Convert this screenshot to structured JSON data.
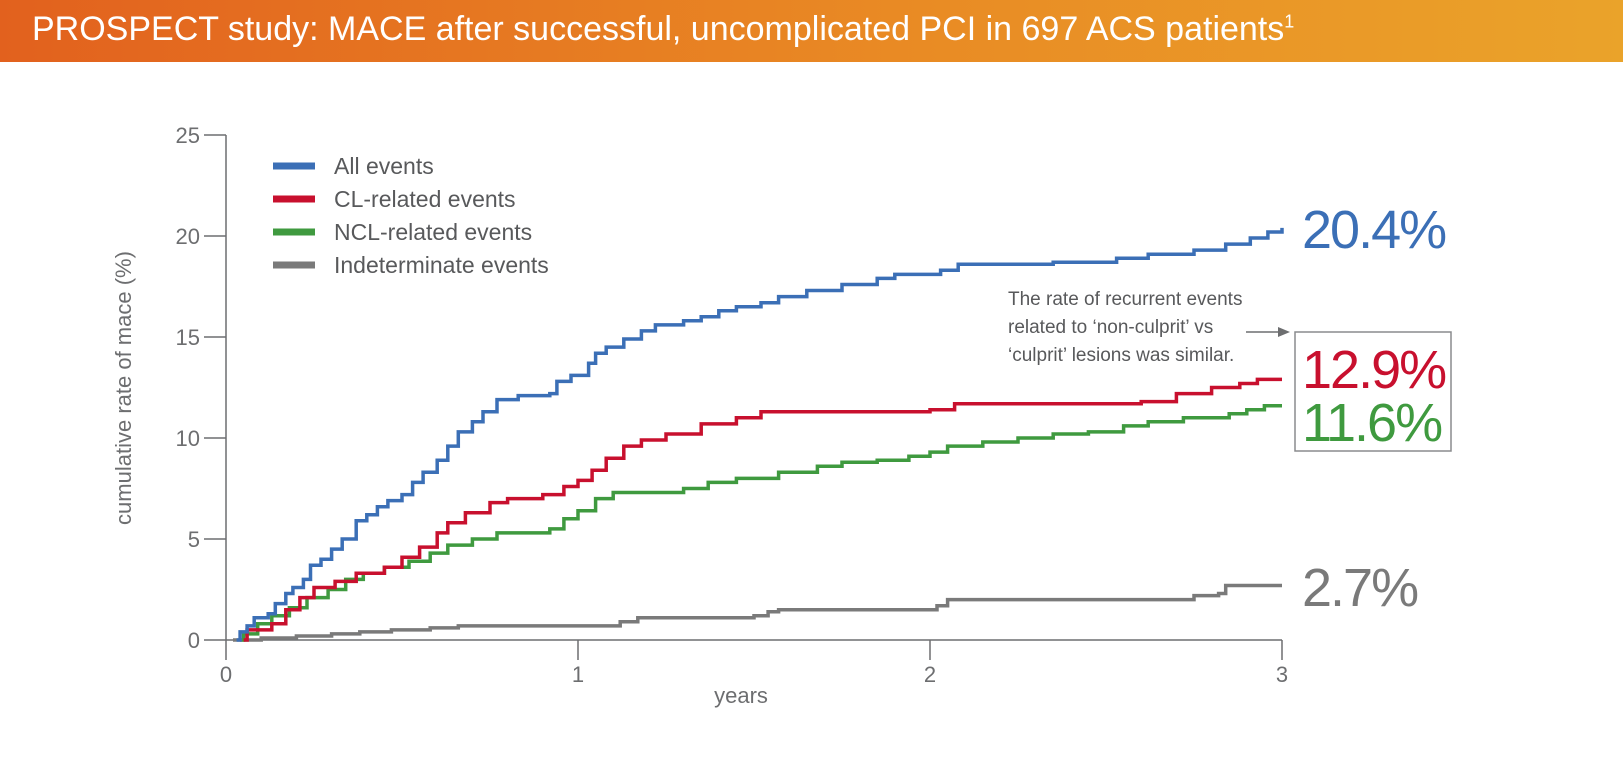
{
  "header": {
    "title": "PROSPECT study: MACE after successful, uncomplicated PCI in 697 ACS patients",
    "superscript": "1"
  },
  "colors": {
    "header_start": "#e2611e",
    "header_end": "#eaa32a",
    "all_events": "#3b6fb6",
    "cl_events": "#c8102e",
    "ncl_events": "#3f9a3f",
    "indeterminate_events": "#7a7a7a",
    "axis": "#6d6e70"
  },
  "chart_data": {
    "type": "line",
    "step": true,
    "xlabel": "years",
    "ylabel": "cumulative rate of mace (%)",
    "xlim": [
      0,
      3
    ],
    "ylim": [
      0,
      25
    ],
    "x_ticks": [
      0,
      1,
      2,
      3
    ],
    "y_ticks": [
      0,
      5,
      10,
      15,
      20,
      25
    ],
    "grid": false,
    "legend_position": "top-left",
    "series": [
      {
        "name": "All events",
        "color": "#3b6fb6",
        "end_label": "20.4%",
        "points": [
          [
            0.03,
            0
          ],
          [
            0.04,
            0.4
          ],
          [
            0.06,
            0.7
          ],
          [
            0.08,
            1.1
          ],
          [
            0.12,
            1.3
          ],
          [
            0.14,
            1.8
          ],
          [
            0.17,
            2.3
          ],
          [
            0.19,
            2.6
          ],
          [
            0.22,
            3.0
          ],
          [
            0.24,
            3.7
          ],
          [
            0.27,
            4.0
          ],
          [
            0.3,
            4.5
          ],
          [
            0.33,
            5.0
          ],
          [
            0.37,
            5.9
          ],
          [
            0.4,
            6.2
          ],
          [
            0.43,
            6.6
          ],
          [
            0.46,
            6.9
          ],
          [
            0.5,
            7.2
          ],
          [
            0.53,
            7.8
          ],
          [
            0.56,
            8.3
          ],
          [
            0.6,
            8.9
          ],
          [
            0.63,
            9.6
          ],
          [
            0.66,
            10.3
          ],
          [
            0.7,
            10.8
          ],
          [
            0.73,
            11.3
          ],
          [
            0.77,
            11.9
          ],
          [
            0.83,
            12.1
          ],
          [
            0.92,
            12.2
          ],
          [
            0.94,
            12.8
          ],
          [
            0.98,
            13.1
          ],
          [
            1.03,
            13.7
          ],
          [
            1.05,
            14.2
          ],
          [
            1.08,
            14.5
          ],
          [
            1.13,
            14.9
          ],
          [
            1.18,
            15.3
          ],
          [
            1.22,
            15.6
          ],
          [
            1.3,
            15.8
          ],
          [
            1.35,
            16.0
          ],
          [
            1.4,
            16.3
          ],
          [
            1.45,
            16.5
          ],
          [
            1.52,
            16.7
          ],
          [
            1.57,
            17.0
          ],
          [
            1.65,
            17.3
          ],
          [
            1.75,
            17.6
          ],
          [
            1.85,
            17.9
          ],
          [
            1.9,
            18.1
          ],
          [
            2.03,
            18.3
          ],
          [
            2.08,
            18.6
          ],
          [
            2.35,
            18.7
          ],
          [
            2.53,
            18.9
          ],
          [
            2.62,
            19.1
          ],
          [
            2.75,
            19.3
          ],
          [
            2.84,
            19.6
          ],
          [
            2.91,
            19.9
          ],
          [
            2.96,
            20.2
          ],
          [
            3.0,
            20.4
          ]
        ]
      },
      {
        "name": "CL-related events",
        "color": "#c8102e",
        "end_label": "12.9%",
        "points": [
          [
            0.05,
            0
          ],
          [
            0.06,
            0.5
          ],
          [
            0.13,
            0.8
          ],
          [
            0.17,
            1.5
          ],
          [
            0.21,
            2.1
          ],
          [
            0.25,
            2.6
          ],
          [
            0.31,
            2.9
          ],
          [
            0.37,
            3.3
          ],
          [
            0.45,
            3.6
          ],
          [
            0.5,
            4.1
          ],
          [
            0.55,
            4.6
          ],
          [
            0.6,
            5.3
          ],
          [
            0.63,
            5.8
          ],
          [
            0.68,
            6.3
          ],
          [
            0.75,
            6.8
          ],
          [
            0.8,
            7.0
          ],
          [
            0.9,
            7.2
          ],
          [
            0.96,
            7.6
          ],
          [
            1.0,
            7.9
          ],
          [
            1.04,
            8.4
          ],
          [
            1.08,
            9.0
          ],
          [
            1.13,
            9.6
          ],
          [
            1.18,
            9.9
          ],
          [
            1.25,
            10.2
          ],
          [
            1.35,
            10.7
          ],
          [
            1.45,
            11.0
          ],
          [
            1.52,
            11.3
          ],
          [
            1.7,
            11.3
          ],
          [
            2.0,
            11.4
          ],
          [
            2.07,
            11.7
          ],
          [
            2.6,
            11.8
          ],
          [
            2.7,
            12.2
          ],
          [
            2.8,
            12.5
          ],
          [
            2.88,
            12.7
          ],
          [
            2.93,
            12.9
          ],
          [
            3.0,
            12.9
          ]
        ]
      },
      {
        "name": "NCL-related events",
        "color": "#3f9a3f",
        "end_label": "11.6%",
        "points": [
          [
            0.04,
            0
          ],
          [
            0.05,
            0.3
          ],
          [
            0.09,
            0.8
          ],
          [
            0.13,
            1.2
          ],
          [
            0.18,
            1.6
          ],
          [
            0.23,
            2.1
          ],
          [
            0.29,
            2.5
          ],
          [
            0.34,
            3.0
          ],
          [
            0.39,
            3.3
          ],
          [
            0.45,
            3.6
          ],
          [
            0.52,
            3.9
          ],
          [
            0.58,
            4.3
          ],
          [
            0.63,
            4.7
          ],
          [
            0.7,
            5.0
          ],
          [
            0.77,
            5.3
          ],
          [
            0.92,
            5.5
          ],
          [
            0.96,
            6.0
          ],
          [
            1.0,
            6.4
          ],
          [
            1.05,
            7.0
          ],
          [
            1.1,
            7.3
          ],
          [
            1.3,
            7.5
          ],
          [
            1.37,
            7.8
          ],
          [
            1.45,
            8.0
          ],
          [
            1.57,
            8.3
          ],
          [
            1.68,
            8.6
          ],
          [
            1.75,
            8.8
          ],
          [
            1.85,
            8.9
          ],
          [
            1.94,
            9.1
          ],
          [
            2.0,
            9.3
          ],
          [
            2.05,
            9.6
          ],
          [
            2.15,
            9.8
          ],
          [
            2.25,
            10.0
          ],
          [
            2.35,
            10.2
          ],
          [
            2.45,
            10.3
          ],
          [
            2.55,
            10.6
          ],
          [
            2.62,
            10.8
          ],
          [
            2.72,
            11.0
          ],
          [
            2.85,
            11.2
          ],
          [
            2.9,
            11.4
          ],
          [
            2.95,
            11.6
          ],
          [
            3.0,
            11.6
          ]
        ]
      },
      {
        "name": "Indeterminate events",
        "color": "#7a7a7a",
        "end_label": "2.7%",
        "points": [
          [
            0.02,
            0
          ],
          [
            0.1,
            0.1
          ],
          [
            0.2,
            0.2
          ],
          [
            0.3,
            0.3
          ],
          [
            0.38,
            0.4
          ],
          [
            0.47,
            0.5
          ],
          [
            0.58,
            0.6
          ],
          [
            0.66,
            0.7
          ],
          [
            0.92,
            0.7
          ],
          [
            1.12,
            0.9
          ],
          [
            1.17,
            1.1
          ],
          [
            1.5,
            1.2
          ],
          [
            1.54,
            1.4
          ],
          [
            1.57,
            1.5
          ],
          [
            1.9,
            1.5
          ],
          [
            2.02,
            1.7
          ],
          [
            2.05,
            2.0
          ],
          [
            2.7,
            2.0
          ],
          [
            2.75,
            2.2
          ],
          [
            2.82,
            2.3
          ],
          [
            2.84,
            2.7
          ],
          [
            3.0,
            2.7
          ]
        ]
      }
    ],
    "annotation": {
      "lines": [
        "The rate of recurrent events",
        "related to ‘non-culprit’ vs",
        "‘culprit’ lesions was similar."
      ]
    }
  }
}
